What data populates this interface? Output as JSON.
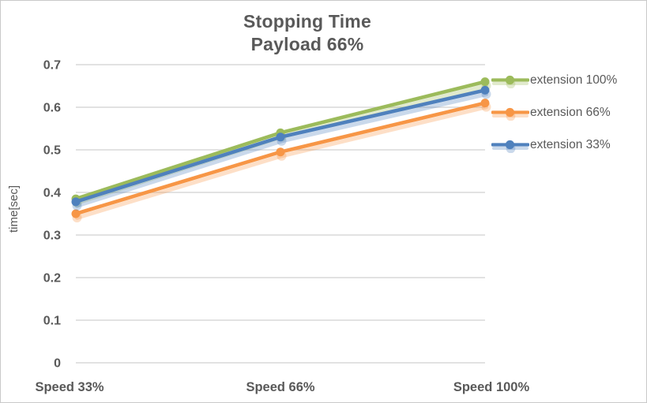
{
  "chart_data": {
    "type": "line",
    "title": "Stopping Time",
    "subtitle": "Payload 66%",
    "categories": [
      "Speed 33%",
      "Speed 66%",
      "Speed 100%"
    ],
    "series": [
      {
        "name": "extension 100%",
        "color": "#9CBB5B",
        "values": [
          0.385,
          0.54,
          0.66
        ]
      },
      {
        "name": "extension 66%",
        "color": "#F79646",
        "values": [
          0.35,
          0.495,
          0.61
        ]
      },
      {
        "name": "extension 33%",
        "color": "#4F81BD",
        "values": [
          0.378,
          0.53,
          0.64
        ]
      }
    ],
    "xlabel": "",
    "ylabel": "time[sec]",
    "ylim": [
      0,
      0.7
    ],
    "ytick_step": 0.1,
    "ytick_labels": [
      "0",
      "0.1",
      "0.2",
      "0.3",
      "0.4",
      "0.5",
      "0.6",
      "0.7"
    ],
    "grid": true,
    "legend_position": "right",
    "marker": "circle",
    "style": {
      "gridline_color": "#D9D9D9",
      "text_color": "#595959",
      "shadow_opacity": 0.3
    }
  }
}
